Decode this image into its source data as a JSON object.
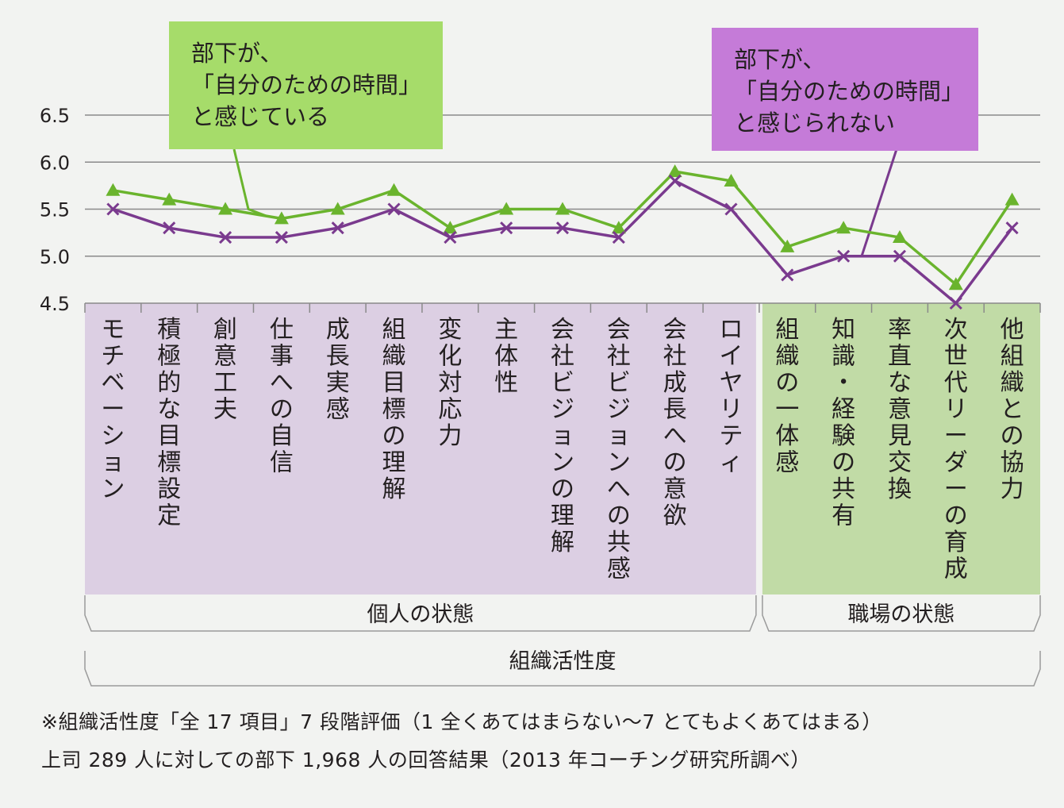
{
  "chart_data": {
    "type": "line",
    "ylim": [
      4.5,
      6.5
    ],
    "yticks": [
      "6.5",
      "6.0",
      "5.5",
      "5.0",
      "4.5"
    ],
    "categories": [
      "モチベーション",
      "積極的な目標設定",
      "創意工夫",
      "仕事への自信",
      "成長実感",
      "組織目標の理解",
      "変化対応力",
      "主体性",
      "会社ビジョンの理解",
      "会社ビジョンへの共感",
      "会社成長への意欲",
      "ロイヤリティ",
      "組織の一体感",
      "知識・経験の共有",
      "率直な意見交換",
      "次世代リーダーの育成",
      "他組織との協力"
    ],
    "series": [
      {
        "name": "部下が、「自分のための時間」と感じている",
        "marker": "triangle",
        "color": "#6ab42d",
        "values": [
          5.7,
          5.6,
          5.5,
          5.4,
          5.5,
          5.7,
          5.3,
          5.5,
          5.5,
          5.3,
          5.9,
          5.8,
          5.1,
          5.3,
          5.2,
          4.7,
          5.6
        ]
      },
      {
        "name": "部下が、「自分のための時間」と感じられない",
        "marker": "x",
        "color": "#7a3a8e",
        "values": [
          5.5,
          5.3,
          5.2,
          5.2,
          5.3,
          5.5,
          5.2,
          5.3,
          5.3,
          5.2,
          5.8,
          5.5,
          4.8,
          5.0,
          5.0,
          4.5,
          5.3
        ]
      }
    ],
    "groups": [
      {
        "label": "個人の状態",
        "count": 12,
        "color": "#dccfe3"
      },
      {
        "label": "職場の状態",
        "count": 5,
        "color": "#c1dba6"
      }
    ],
    "supergroup": "組織活性度",
    "callouts": [
      {
        "lines": [
          "部下が、",
          "「自分のための時間」",
          "と感じている"
        ],
        "color": "#a6dc6a"
      },
      {
        "lines": [
          "部下が、",
          "「自分のための時間」",
          "と感じられない"
        ],
        "color": "#c57bd8"
      }
    ]
  },
  "notes": [
    "※組織活性度「全 17 項目」7 段階評価（1 全くあてはまらない〜7 とてもよくあてはまる）",
    "上司 289 人に対しての部下 1,968 人の回答結果（2013 年コーチング研究所調べ）"
  ]
}
